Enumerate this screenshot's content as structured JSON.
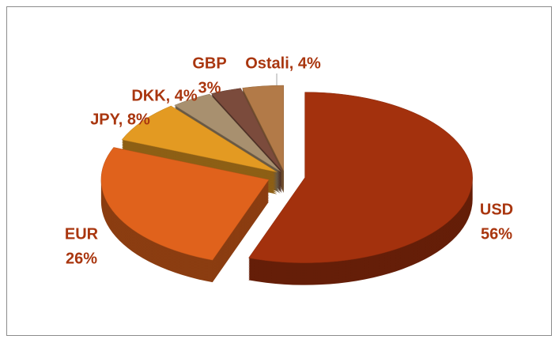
{
  "chart_data": {
    "type": "pie3d",
    "values": [
      56,
      26,
      8,
      4,
      3,
      4
    ],
    "value_labels": [
      [
        "USD",
        "56%"
      ],
      [
        "EUR",
        "26%"
      ],
      [
        "JPY, 8%"
      ],
      [
        "DKK, 4%"
      ],
      [
        "GBP",
        "3%"
      ],
      [
        "Ostali, 4%"
      ]
    ],
    "colors": [
      "#a3310d",
      "#e0621c",
      "#e39a22",
      "#a8906f",
      "#7b4b3c",
      "#b27a48"
    ]
  }
}
